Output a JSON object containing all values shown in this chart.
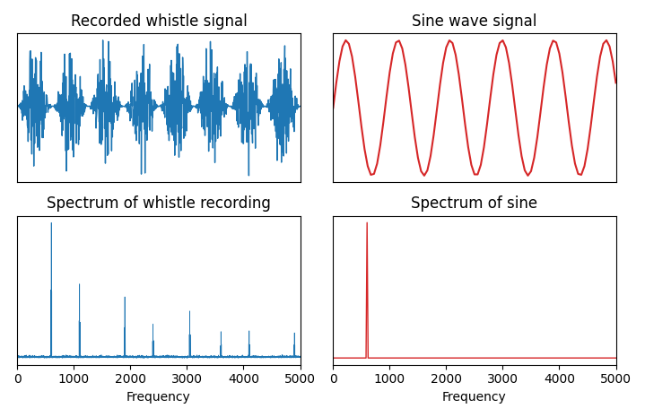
{
  "title_whistle_wave": "Recorded whistle signal",
  "title_sine_wave": "Sine wave signal",
  "title_whistle_spectrum": "Spectrum of whistle recording",
  "title_sine_spectrum": "Spectrum of sine",
  "xlabel_bottom": "Frequency",
  "whistle_color": "#1f77b4",
  "sine_color": "#d62728",
  "figsize": [
    7.19,
    4.65
  ],
  "dpi": 100,
  "sample_rate": 10000,
  "whistle_fund_freq": 8.0,
  "whistle_carrier_freq": 600,
  "whistle_harmonics": [
    600,
    1100,
    1900,
    2400,
    3050,
    3600,
    4100,
    4900
  ],
  "whistle_harmonic_amps": [
    1.0,
    0.55,
    0.45,
    0.25,
    0.35,
    0.2,
    0.2,
    0.18
  ],
  "sine_freq": 600,
  "sine_cycles": 5.5,
  "noise_amp": 0.35,
  "freq_max": 5000
}
